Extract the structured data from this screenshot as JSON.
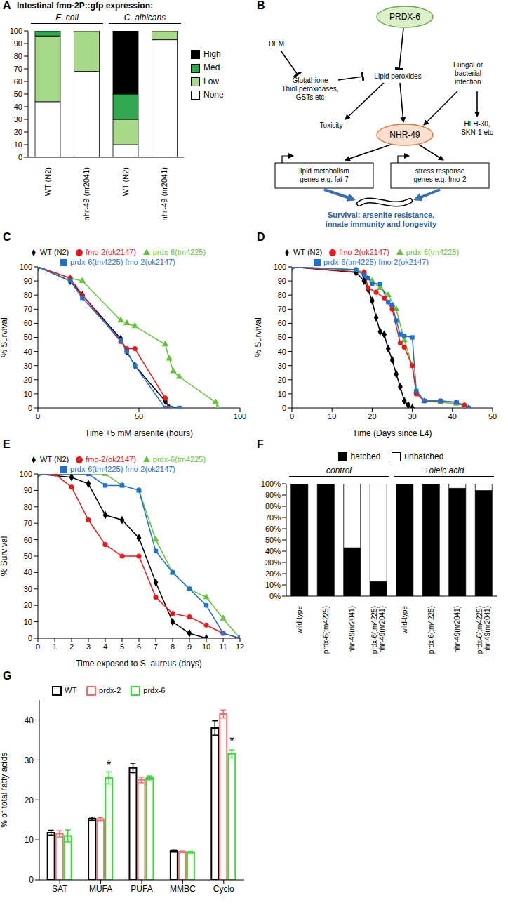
{
  "chart_data": [
    {
      "panel": "A",
      "type": "bar",
      "stacked": true,
      "grid": false,
      "legend": "right",
      "title": "Intestinal fmo-2P::gfp expression:",
      "categories": [
        "WT (N2)",
        "nhr-49 (nr2041)",
        "WT (N2)",
        "nhr-49 (nr2041)"
      ],
      "groups": [
        {
          "name": "E. coli",
          "count": 2
        },
        {
          "name": "C. albicans",
          "count": 2
        }
      ],
      "series": [
        {
          "name": "None",
          "color": "#ffffff",
          "values": [
            44,
            68,
            10,
            93
          ]
        },
        {
          "name": "Low",
          "color": "#a8d88a",
          "values": [
            52,
            32,
            20,
            7
          ]
        },
        {
          "name": "Med",
          "color": "#2fa84f",
          "values": [
            4,
            0,
            20,
            0
          ]
        },
        {
          "name": "High",
          "color": "#000000",
          "values": [
            0,
            0,
            50,
            0
          ]
        }
      ],
      "ylim": [
        0,
        100
      ],
      "yticks": [
        0,
        10,
        20,
        30,
        40,
        50,
        60,
        70,
        80,
        90,
        100
      ]
    },
    {
      "panel": "C",
      "type": "line",
      "grid": false,
      "legend": "top",
      "x_label": "Time +5 mM arsenite (hours)",
      "y_label": "% Survival",
      "xlim": [
        0,
        100
      ],
      "xticks": [
        0,
        50,
        100
      ],
      "ylim": [
        0,
        100
      ],
      "yticks": [
        0,
        10,
        20,
        30,
        40,
        50,
        60,
        70,
        80,
        90,
        100
      ],
      "series": [
        {
          "name": "WT (N2)",
          "color": "#000000",
          "marker": "diamond",
          "x": [
            0,
            16,
            22,
            41,
            44,
            48,
            63,
            65
          ],
          "values": [
            100,
            90,
            80,
            49,
            40,
            30,
            5,
            0
          ]
        },
        {
          "name": "prdx-6(tm4225)",
          "color": "#66c23a",
          "marker": "triangle",
          "x": [
            0,
            16,
            22,
            41,
            44,
            48,
            63,
            65,
            67,
            70,
            88,
            89
          ],
          "values": [
            100,
            92,
            90,
            62,
            60,
            58,
            45,
            35,
            26,
            22,
            4,
            0
          ]
        },
        {
          "name": "fmo-2(ok2147)",
          "color": "#e8191c",
          "marker": "circle",
          "x": [
            0,
            16,
            22,
            41,
            44,
            48,
            63,
            65
          ],
          "values": [
            100,
            92,
            80,
            47,
            42,
            42,
            7,
            0
          ]
        },
        {
          "name": "prdx-6(tm4225) fmo-2(ok2147)",
          "color": "#1f6fd1",
          "marker": "square",
          "x": [
            0,
            16,
            22,
            41,
            44,
            48,
            63,
            66,
            70
          ],
          "values": [
            100,
            90,
            78,
            48,
            40,
            30,
            0,
            0,
            0
          ]
        }
      ]
    },
    {
      "panel": "D",
      "type": "line",
      "grid": false,
      "legend": "top",
      "x_label": "Time (Days since L4)",
      "y_label": "% Survival",
      "xlim": [
        0,
        50
      ],
      "xticks": [
        0,
        10,
        20,
        30,
        40,
        50
      ],
      "ylim": [
        0,
        100
      ],
      "yticks": [
        0,
        10,
        20,
        30,
        40,
        50,
        60,
        70,
        80,
        90,
        100
      ],
      "series": [
        {
          "name": "WT (N2)",
          "color": "#000000",
          "marker": "diamond",
          "x": [
            0,
            16,
            18,
            19,
            20,
            21,
            22,
            23,
            24,
            25,
            26,
            27,
            28,
            29,
            30
          ],
          "values": [
            100,
            96,
            90,
            84,
            76,
            64,
            54,
            52,
            42,
            34,
            24,
            15,
            5,
            2,
            0
          ]
        },
        {
          "name": "prdx-6(tm4225)",
          "color": "#66c23a",
          "marker": "triangle",
          "x": [
            0,
            16,
            18,
            20,
            22,
            24,
            26,
            28,
            30,
            31,
            33,
            37,
            41,
            43,
            44
          ],
          "values": [
            100,
            98,
            96,
            90,
            85,
            80,
            70,
            48,
            30,
            12,
            5,
            4,
            3,
            2,
            0
          ]
        },
        {
          "name": "fmo-2(ok2147)",
          "color": "#e8191c",
          "marker": "circle",
          "x": [
            0,
            18,
            19,
            21,
            23,
            25,
            27,
            28,
            30,
            31,
            33,
            37,
            41,
            43,
            44
          ],
          "values": [
            100,
            96,
            85,
            82,
            78,
            70,
            46,
            43,
            30,
            10,
            5,
            5,
            4,
            2,
            0
          ]
        },
        {
          "name": "prdx-6(tm4225) fmo-2(ok2147)",
          "color": "#1f6fd1",
          "marker": "square",
          "x": [
            0,
            16,
            18,
            19,
            20,
            22,
            24,
            25,
            26,
            27,
            28,
            30,
            31,
            33,
            37,
            41,
            44
          ],
          "values": [
            100,
            98,
            94,
            92,
            88,
            88,
            75,
            73,
            62,
            52,
            51,
            50,
            12,
            5,
            5,
            4,
            0
          ]
        }
      ]
    },
    {
      "panel": "E",
      "type": "line",
      "grid": false,
      "legend": "top",
      "x_label": "Time exposed to S. aureus (days)",
      "y_label": "% Survival",
      "xlim": [
        0,
        12
      ],
      "xticks": [
        0,
        1,
        2,
        3,
        4,
        5,
        6,
        7,
        8,
        9,
        10,
        11,
        12
      ],
      "ylim": [
        0,
        100
      ],
      "yticks": [
        0,
        10,
        20,
        30,
        40,
        50,
        60,
        70,
        80,
        90,
        100
      ],
      "series": [
        {
          "name": "WT (N2)",
          "color": "#000000",
          "marker": "diamond",
          "x": [
            0,
            2,
            3,
            4,
            5,
            6,
            7,
            8,
            9,
            10
          ],
          "values": [
            100,
            98,
            94,
            75,
            72,
            61,
            34,
            10,
            3,
            0
          ]
        },
        {
          "name": "prdx-6(tm4225)",
          "color": "#66c23a",
          "marker": "triangle",
          "x": [
            0,
            4,
            5,
            6,
            7,
            8,
            9,
            10,
            11,
            12
          ],
          "values": [
            100,
            100,
            93,
            90,
            60,
            40,
            30,
            25,
            12,
            0
          ]
        },
        {
          "name": "fmo-2(ok2147)",
          "color": "#e8191c",
          "marker": "circle",
          "x": [
            0,
            1,
            2,
            3,
            4,
            5,
            6,
            7,
            8,
            9,
            10,
            11,
            12
          ],
          "values": [
            100,
            100,
            92,
            72,
            57,
            50,
            50,
            25,
            15,
            13,
            8,
            3,
            0
          ]
        },
        {
          "name": "prdx-6(tm4225) fmo-2(ok2147)",
          "color": "#1f6fd1",
          "marker": "square",
          "x": [
            0,
            3,
            4,
            5,
            6,
            7,
            8,
            9,
            10,
            11,
            12
          ],
          "values": [
            100,
            100,
            93,
            93,
            90,
            53,
            40,
            30,
            20,
            3,
            0
          ]
        }
      ]
    },
    {
      "panel": "F",
      "type": "bar",
      "stacked": true,
      "grid": false,
      "legend": "top",
      "categories": [
        "wild-type",
        "prdx-6(tm4225)",
        "nhr-49(nr2041)",
        "prdx-6(tm4225)nhr-49(nr2041)",
        "wild-type",
        "prdx-6(tm4225)",
        "nhr-49(nr2041)",
        "prdx-6(tm4225)nhr-49(nr2041)"
      ],
      "groups": [
        {
          "name": "control",
          "count": 4
        },
        {
          "name": "+oleic acid",
          "count": 4
        }
      ],
      "series": [
        {
          "name": "hatched",
          "color": "#000000",
          "values": [
            100,
            100,
            43,
            13,
            100,
            100,
            96,
            94
          ]
        },
        {
          "name": "unhatched",
          "color": "#ffffff",
          "values": [
            0,
            0,
            57,
            87,
            0,
            0,
            4,
            6
          ]
        }
      ],
      "ylim": [
        0,
        100
      ],
      "yticks": [
        {
          "value": 0,
          "label": "0%"
        },
        {
          "value": 10,
          "label": "10%"
        },
        {
          "value": 20,
          "label": "20%"
        },
        {
          "value": 30,
          "label": "30%"
        },
        {
          "value": 40,
          "label": "40%"
        },
        {
          "value": 50,
          "label": "50%"
        },
        {
          "value": 60,
          "label": "60%"
        },
        {
          "value": 70,
          "label": "70%"
        },
        {
          "value": 80,
          "label": "80%"
        },
        {
          "value": 90,
          "label": "90%"
        },
        {
          "value": 100,
          "label": "100%"
        }
      ]
    },
    {
      "panel": "G",
      "type": "bar",
      "grid": false,
      "legend": "top",
      "y_label": "% of total fatty acids",
      "categories": [
        "SAT",
        "MUFA",
        "PUFA",
        "MMBC",
        "Cyclo"
      ],
      "series": [
        {
          "name": "WT",
          "color": "#000000",
          "values": [
            11.8,
            15.3,
            28,
            7.2,
            38
          ],
          "errors": [
            0.6,
            0.4,
            1.2,
            0.3,
            1.8
          ]
        },
        {
          "name": "prdx-2",
          "color": "#f07070",
          "values": [
            11.5,
            15.2,
            25,
            7.0,
            41.5
          ],
          "errors": [
            0.8,
            0.4,
            0.7,
            0.2,
            1.0
          ]
        },
        {
          "name": "prdx-6",
          "color": "#33dd33",
          "values": [
            11,
            25.5,
            25.5,
            6.9,
            31.5
          ],
          "errors": [
            1.5,
            1.5,
            0.5,
            0.2,
            1.0
          ]
        }
      ],
      "annotations": [
        {
          "category": "MUFA",
          "series": "prdx-6",
          "text": "*"
        },
        {
          "category": "Cyclo",
          "series": "prdx-6",
          "text": "*"
        }
      ],
      "ylim": [
        0,
        45
      ],
      "yticks": [
        0,
        10,
        20,
        30,
        40
      ]
    }
  ],
  "diagram": {
    "panel": "B",
    "nodes": {
      "prdx6": "PRDX-6",
      "dem": "DEM",
      "antioxidants": [
        "Glutathione",
        "Thiol peroxidases, GSTs etc"
      ],
      "lipid_peroxides": "Lipid peroxides",
      "infection": "Fungal or bacterial infection",
      "toxicity": "Toxicity",
      "nhr49": "NHR-49",
      "other_tfs": "HLH-30, SKN-1 etc",
      "lipid_genes": [
        "lipid metabolism",
        "genes e.g. fat-7"
      ],
      "stress_genes": [
        "stress response",
        "genes e.g. fmo-2"
      ],
      "outcome": "Survival: arsenite resistance, innate immunity and longevity"
    }
  }
}
